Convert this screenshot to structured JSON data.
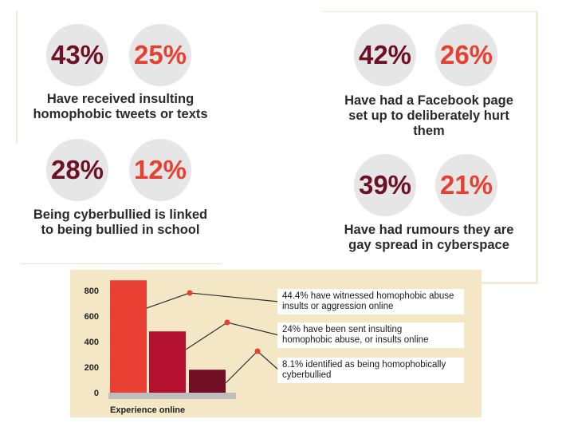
{
  "stats": {
    "insulting_tweets": {
      "dark": "43%",
      "red": "25%",
      "caption_line1": "Have received insulting",
      "caption_line2": "homophobic tweets or texts"
    },
    "cyberbullied_school": {
      "dark": "28%",
      "red": "12%",
      "caption_line1": "Being cyberbullied is linked",
      "caption_line2": "to being bullied in school"
    },
    "facebook_page": {
      "dark": "42%",
      "red": "26%",
      "caption_line1": "Have had a Facebook page",
      "caption_line2": "set up to deliberately hurt",
      "caption_line3": "them"
    },
    "rumours": {
      "dark": "39%",
      "red": "21%",
      "caption_line1": "Have had rumours they are",
      "caption_line2": "gay spread in cyberspace"
    }
  },
  "colors": {
    "dark_value": "#6d1124",
    "red_value": "#e64030",
    "circle_bg": "#e6e6e6",
    "chart_bg": "#f3e7c6"
  },
  "chart_data": {
    "type": "bar",
    "xlabel": "Experience online",
    "ylim": [
      0,
      800
    ],
    "yticks": [
      "800",
      "600",
      "400",
      "200",
      "0"
    ],
    "values": [
      880,
      480,
      180
    ],
    "bar_colors": [
      "#e84032",
      "#b3112f",
      "#730f25"
    ],
    "annotations": [
      {
        "line1": "44.4% have witnessed homophobic abuse",
        "line2": "insults or aggression online"
      },
      {
        "line1": "24% have been sent insulting",
        "line2": "homophobic abuse, or insults online"
      },
      {
        "line1": "8.1% identified as being homophobically",
        "line2": "cyberbullied"
      }
    ]
  }
}
